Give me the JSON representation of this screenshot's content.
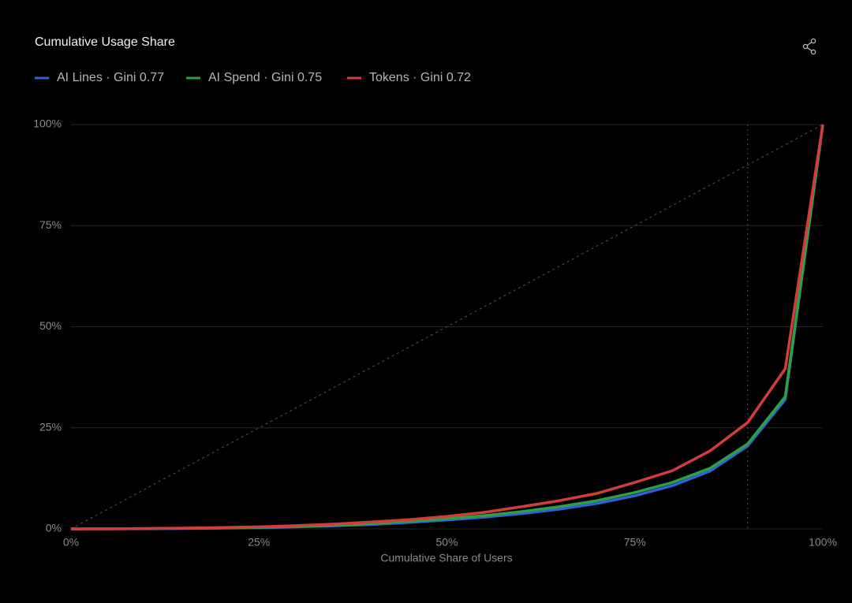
{
  "chart_data": {
    "type": "line",
    "title": "Cumulative Usage Share",
    "x_label": "Cumulative Share of Users",
    "x": [
      0,
      5,
      10,
      15,
      20,
      25,
      30,
      35,
      40,
      45,
      50,
      55,
      60,
      65,
      70,
      75,
      80,
      85,
      90,
      95,
      100
    ],
    "series": [
      {
        "name": "AI Lines · Gini 0.77",
        "color": "#2f62d6",
        "values": [
          0,
          0.01,
          0.05,
          0.1,
          0.2,
          0.3,
          0.5,
          0.75,
          1.1,
          1.6,
          2.2,
          2.9,
          3.8,
          4.9,
          6.3,
          8.2,
          10.7,
          14.3,
          20.5,
          32,
          100
        ]
      },
      {
        "name": "AI Spend · Gini 0.75",
        "color": "#2ea043",
        "values": [
          0,
          0.02,
          0.08,
          0.15,
          0.25,
          0.4,
          0.6,
          0.9,
          1.3,
          1.9,
          2.5,
          3.3,
          4.3,
          5.5,
          7,
          9,
          11.5,
          15,
          21,
          32.7,
          100
        ]
      },
      {
        "name": "Tokens · Gini 0.72",
        "color": "#d43c3c",
        "values": [
          0,
          0.03,
          0.1,
          0.2,
          0.35,
          0.5,
          0.8,
          1.2,
          1.7,
          2.3,
          3.1,
          4.1,
          5.5,
          7,
          8.8,
          11.5,
          14.4,
          19.3,
          26.3,
          39.6,
          100
        ]
      }
    ],
    "xlim": [
      0,
      100
    ],
    "ylim": [
      0,
      100
    ],
    "xticks": [
      {
        "value": 0,
        "label": "0%"
      },
      {
        "value": 25,
        "label": "25%"
      },
      {
        "value": 50,
        "label": "50%"
      },
      {
        "value": 75,
        "label": "75%"
      },
      {
        "value": 100,
        "label": "100%"
      }
    ],
    "yticks": [
      {
        "value": 0,
        "label": "0%"
      },
      {
        "value": 25,
        "label": "25%"
      },
      {
        "value": 50,
        "label": "50%"
      },
      {
        "value": 75,
        "label": "75%"
      },
      {
        "value": 100,
        "label": "100%"
      }
    ],
    "grid": true,
    "equality_line": true,
    "vline_x": 90
  }
}
